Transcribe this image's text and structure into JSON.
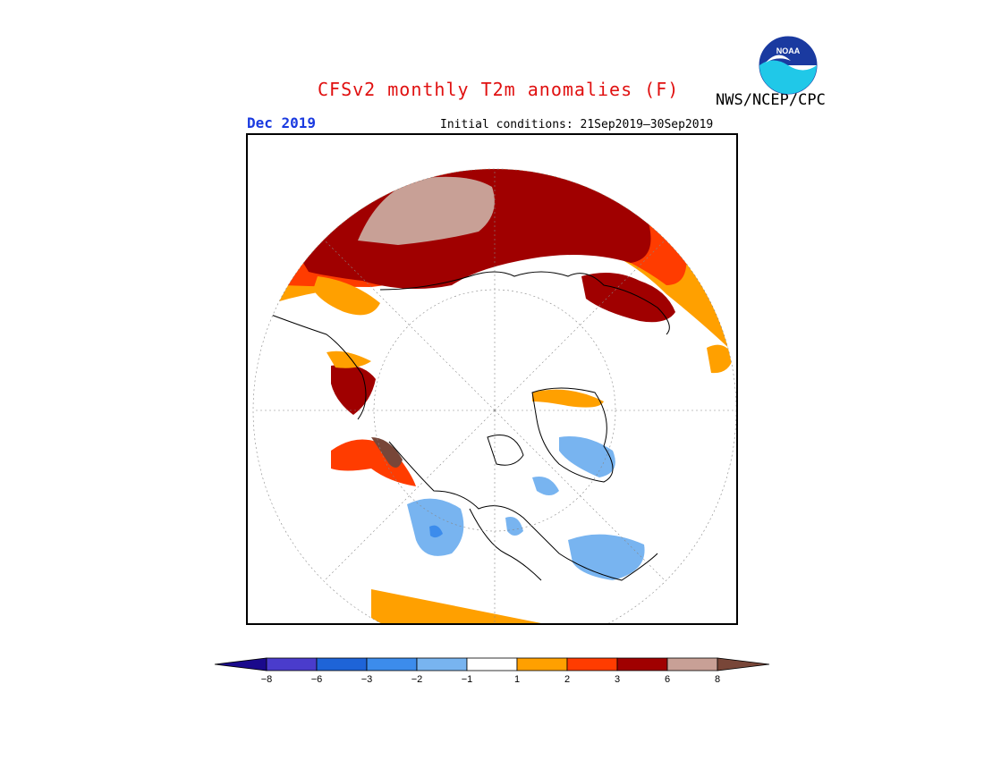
{
  "header": {
    "title": "CFSv2 monthly T2m anomalies (F)",
    "agency": "NWS/NCEP/CPC",
    "logo_text": "NOAA",
    "month": "Dec 2019",
    "initial_conditions": "Initial conditions: 21Sep2019—30Sep2019"
  },
  "colorbar": {
    "tick_labels": [
      "−8",
      "−6",
      "−3",
      "−2",
      "−1",
      "1",
      "2",
      "3",
      "6",
      "8"
    ],
    "colors": [
      "#1a0a8c",
      "#4a3ccc",
      "#1e64d8",
      "#3c8cec",
      "#78b4f0",
      "#ffffff",
      "#ffa000",
      "#ff3c00",
      "#a00000",
      "#c8a096",
      "#784638"
    ]
  },
  "map": {
    "projection": "north polar stereographic",
    "legend": {
      "warm_strong": "#a00000",
      "warm_moderate": "#ff3c00",
      "warm_light": "#ffa000",
      "warm_extreme": "#c8a096",
      "cool_light": "#78b4f0",
      "cool_moderate": "#3c8cec"
    }
  }
}
